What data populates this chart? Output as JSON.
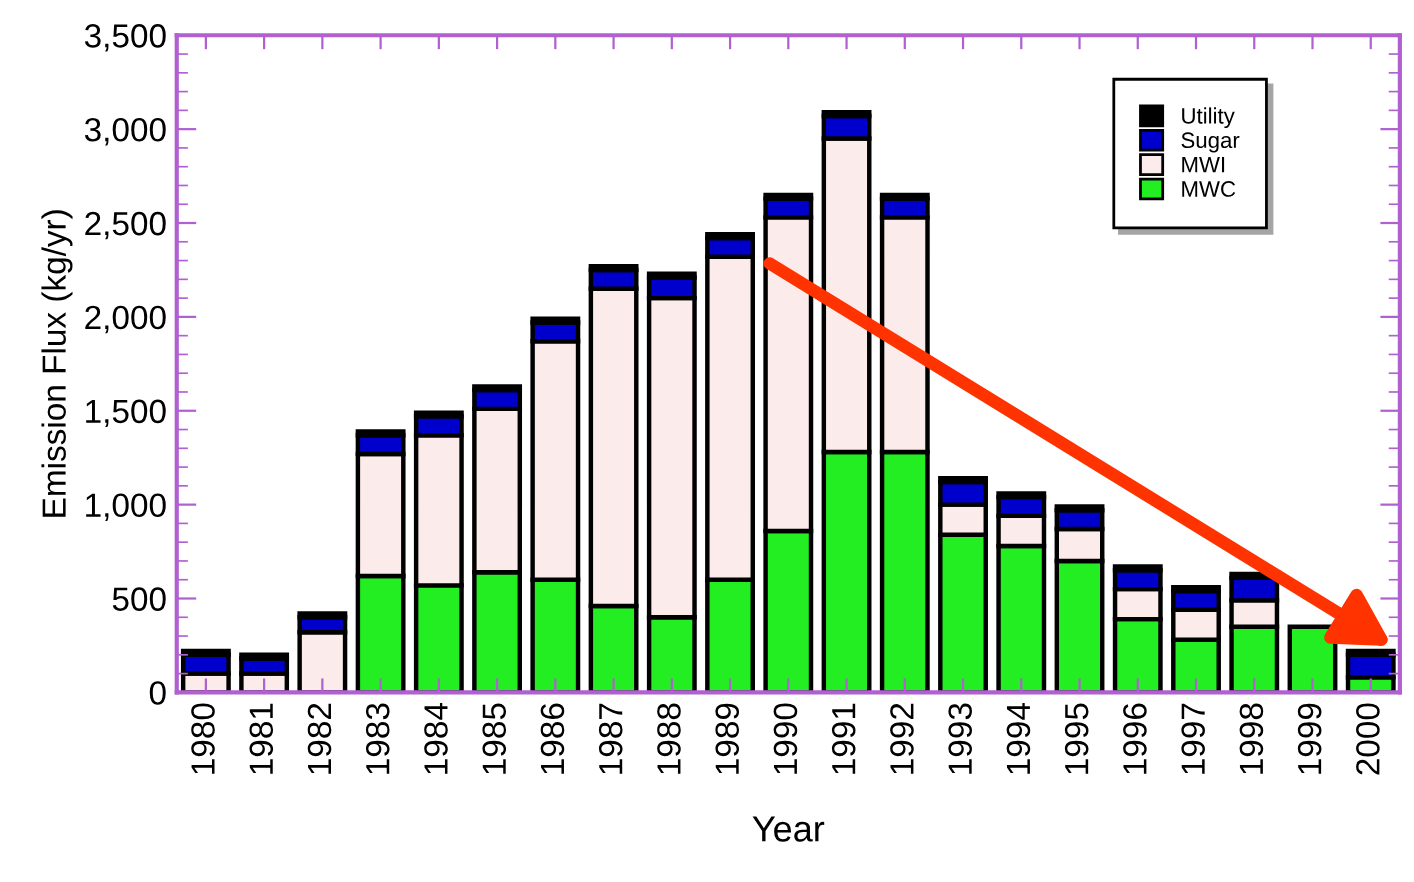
{
  "chart_data": {
    "type": "bar",
    "stacked": true,
    "xlabel": "Year",
    "ylabel": "Emission Flux (kg/yr)",
    "categories": [
      "1980",
      "1981",
      "1982",
      "1983",
      "1984",
      "1985",
      "1986",
      "1987",
      "1988",
      "1989",
      "1990",
      "1991",
      "1992",
      "1993",
      "1994",
      "1995",
      "1996",
      "1997",
      "1998",
      "1999",
      "2000"
    ],
    "series": [
      {
        "name": "MWC",
        "color": "#22ee22",
        "values": [
          0,
          0,
          0,
          620,
          570,
          640,
          600,
          460,
          400,
          600,
          860,
          1280,
          1280,
          840,
          780,
          700,
          390,
          280,
          350,
          350,
          80
        ]
      },
      {
        "name": "MWI",
        "color": "#fbebeb",
        "values": [
          100,
          100,
          320,
          650,
          800,
          870,
          1270,
          1690,
          1700,
          1720,
          1670,
          1670,
          1250,
          160,
          160,
          170,
          160,
          160,
          140,
          null,
          null
        ]
      },
      {
        "name": "Sugar",
        "color": "#0000cc",
        "values": [
          100,
          80,
          80,
          100,
          100,
          100,
          100,
          100,
          110,
          100,
          100,
          120,
          100,
          120,
          100,
          100,
          100,
          100,
          120,
          null,
          120
        ]
      },
      {
        "name": "Utility",
        "color": "#000000",
        "values": [
          20,
          20,
          20,
          20,
          20,
          20,
          20,
          20,
          20,
          20,
          20,
          20,
          20,
          20,
          20,
          20,
          20,
          20,
          20,
          null,
          20
        ]
      }
    ],
    "ylim": [
      0,
      3500
    ],
    "yticks": [
      0,
      500,
      {
        "value": 1000,
        "label": "1,000"
      },
      {
        "value": 1500,
        "label": "1,500"
      },
      {
        "value": 2000,
        "label": "2,000"
      },
      {
        "value": 2500,
        "label": "2,500"
      },
      {
        "value": 3000,
        "label": "3,000"
      },
      {
        "value": 3500,
        "label": "3,500"
      }
    ],
    "grid": false,
    "legend": "top right"
  }
}
